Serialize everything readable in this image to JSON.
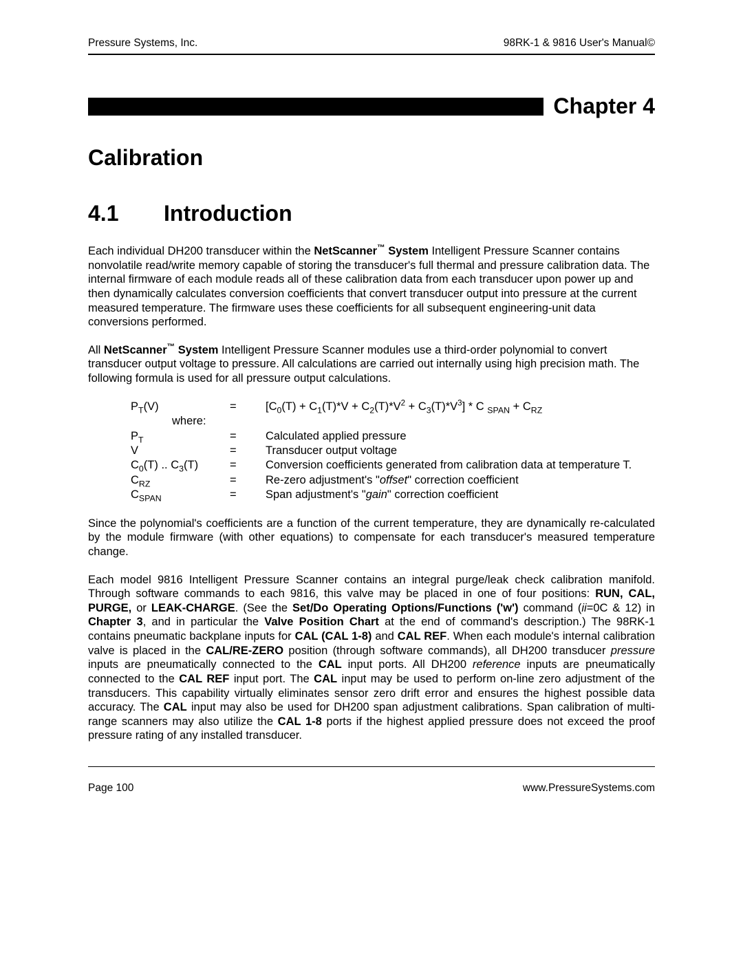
{
  "header": {
    "left": "Pressure Systems, Inc.",
    "right": "98RK-1 & 9816 User's Manual©"
  },
  "chapter_label": "Chapter 4",
  "title": "Calibration",
  "section": {
    "num": "4.1",
    "title": "Introduction"
  },
  "para1": {
    "t1": "Each individual DH200 transducer within the ",
    "b1": "NetScanner",
    "tm": "™",
    "b2": " System",
    "t2": " Intelligent Pressure Scanner contains nonvolatile read/write memory capable of storing the transducer's full thermal and pressure calibration data.  The internal firmware of each module reads all of these calibration data from each transducer upon power up and then dynamically calculates conversion coefficients that convert transducer output into pressure at the current measured temperature.  The firmware uses these coefficients for all subsequent engineering-unit data conversions performed."
  },
  "para2": {
    "t1": "All ",
    "b1": "NetScanner",
    "tm": "™",
    "b2": " System",
    "t2": " Intelligent Pressure Scanner modules use a third-order polynomial to convert transducer output voltage to pressure.  All calculations are carried out internally using high precision math.  The following formula is used for all pressure output calculations."
  },
  "formula": {
    "lhs_html": "P<sub>T</sub>(V)",
    "eq": "=",
    "rhs_html": "[C<sub>0</sub>(T) + C<sub>1</sub>(T)*V + C<sub>2</sub>(T)*V<sup>2</sup> + C<sub>3</sub>(T)*V<sup>3</sup>] * C <sub>SPAN</sub> + C<sub>RZ</sub>",
    "where": "where:",
    "rows": [
      {
        "sym_html": "P<sub>T</sub>",
        "desc": "Calculated applied pressure"
      },
      {
        "sym_html": "V",
        "desc": "Transducer output voltage"
      },
      {
        "sym_html": "C<sub>0</sub>(T) .. C<sub>3</sub>(T)",
        "desc": "Conversion coefficients generated from calibration data at temperature T."
      },
      {
        "sym_html": "C<sub>RZ</sub>",
        "desc_html": "Re-zero adjustment's \"<span class=\"ital\">offset</span>\" correction coefficient"
      },
      {
        "sym_html": "C<sub>SPAN</sub>",
        "desc_html": "Span adjustment's \"<span class=\"ital\">gain</span>\" correction coefficient"
      }
    ]
  },
  "para3": "Since the polynomial's coefficients are a function of the current temperature, they are dynamically re-calculated by the module firmware (with other equations) to compensate for each transducer's measured temperature change.",
  "para4": {
    "t1": "Each model 9816 Intelligent Pressure Scanner contains an integral purge/leak check calibration manifold. Through software commands to each 9816, this valve may be placed in one of four positions: ",
    "b1": "RUN, CAL, PURGE,",
    "t2": " or ",
    "b2": "LEAK-CHARGE",
    "t3": ".    (See the ",
    "b3": "Set/Do Operating Options/Functions ('w')",
    "t4": " command (",
    "i1": "ii",
    "t5": "=0C & 12) in ",
    "b4": "Chapter 3",
    "t6": ", and in particular the ",
    "b5": "Valve Position Chart",
    "t7": " at the end of command's description.)   The 98RK-1 contains pneumatic backplane inputs for ",
    "b6": "CAL (CAL 1-8)",
    "t8": " and ",
    "b7": "CAL REF",
    "t9": ".  When each module's internal calibration valve is placed in the ",
    "b8": "CAL/RE-ZERO",
    "t10": " position (through software commands), all DH200 transducer ",
    "i2": "pressure",
    "t11": " inputs are pneumatically connected to the ",
    "b9": "CAL",
    "t12": " input ports.  All DH200 ",
    "i3": "reference",
    "t13": " inputs are pneumatically connected to the ",
    "b10": "CAL REF",
    "t14": " input port.  The ",
    "b11": "CAL",
    "t15": " input may be used to perform on-line zero adjustment of the transducers.  This capability virtually eliminates sensor zero drift error and ensures the highest possible data accuracy.  The ",
    "b12": "CAL",
    "t16": " input may also be used for DH200 span adjustment calibrations.  Span calibration of multi-range scanners may also utilize the ",
    "b13": "CAL 1-8",
    "t17": " ports if the highest applied pressure does not exceed the proof pressure rating of any installed transducer."
  },
  "footer": {
    "left": "Page 100",
    "right": "www.PressureSystems.com"
  }
}
